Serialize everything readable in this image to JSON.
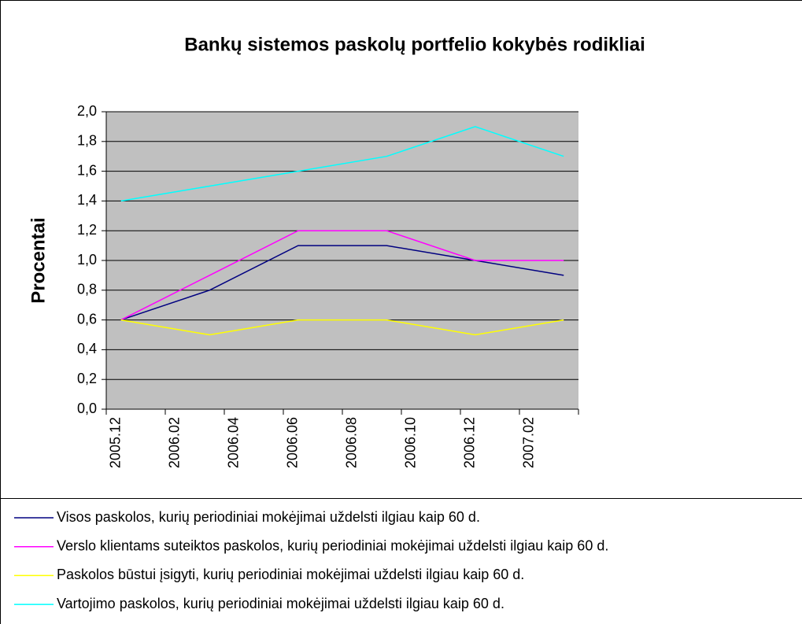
{
  "chart_data": {
    "type": "line",
    "title": "Bankų sistemos paskolų portfelio kokybės rodikliai",
    "ylabel": "Procentai",
    "categories": [
      "2005.12",
      null,
      "2006.02",
      null,
      "2006.04",
      null,
      "2006.06",
      null,
      "2006.08",
      null,
      "2006.10",
      null,
      "2006.12",
      null,
      "2007.02",
      null
    ],
    "x": [
      0,
      3,
      6,
      9,
      12,
      15
    ],
    "series": [
      {
        "name": "Visos paskolos, kurių periodiniai mokėjimai uždelsti ilgiau kaip 60 d.",
        "color": "#000080",
        "values": [
          0.6,
          0.8,
          1.1,
          1.1,
          1.0,
          0.9
        ]
      },
      {
        "name": "Verslo klientams suteiktos paskolos, kurių periodiniai mokėjimai uždelsti ilgiau kaip 60 d.",
        "color": "#ff00ff",
        "values": [
          0.6,
          0.9,
          1.2,
          1.2,
          1.0,
          1.0
        ]
      },
      {
        "name": "Paskolos būstui įsigyti, kurių periodiniai mokėjimai uždelsti ilgiau kaip 60 d.",
        "color": "#ffff00",
        "values": [
          0.6,
          0.5,
          0.6,
          0.6,
          0.5,
          0.6
        ]
      },
      {
        "name": "Vartojimo paskolos, kurių periodiniai mokėjimai uždelsti ilgiau kaip 60 d.",
        "color": "#00ffff",
        "values": [
          1.4,
          1.5,
          1.6,
          1.7,
          1.9,
          1.7
        ]
      }
    ],
    "ylim": [
      0,
      2
    ],
    "yticks": [
      {
        "value": 0,
        "label": "0,0"
      },
      {
        "value": 0.2,
        "label": "0,2"
      },
      {
        "value": 0.4,
        "label": "0,4"
      },
      {
        "value": 0.6,
        "label": "0,6"
      },
      {
        "value": 0.8,
        "label": "0,8"
      },
      {
        "value": 1.0,
        "label": "1,0"
      },
      {
        "value": 1.2,
        "label": "1,2"
      },
      {
        "value": 1.4,
        "label": "1,4"
      },
      {
        "value": 1.6,
        "label": "1,6"
      },
      {
        "value": 1.8,
        "label": "1,8"
      },
      {
        "value": 2.0,
        "label": "2,0"
      }
    ],
    "grid": true,
    "plot_background": "#c0c0c0",
    "legend": "bottom"
  }
}
